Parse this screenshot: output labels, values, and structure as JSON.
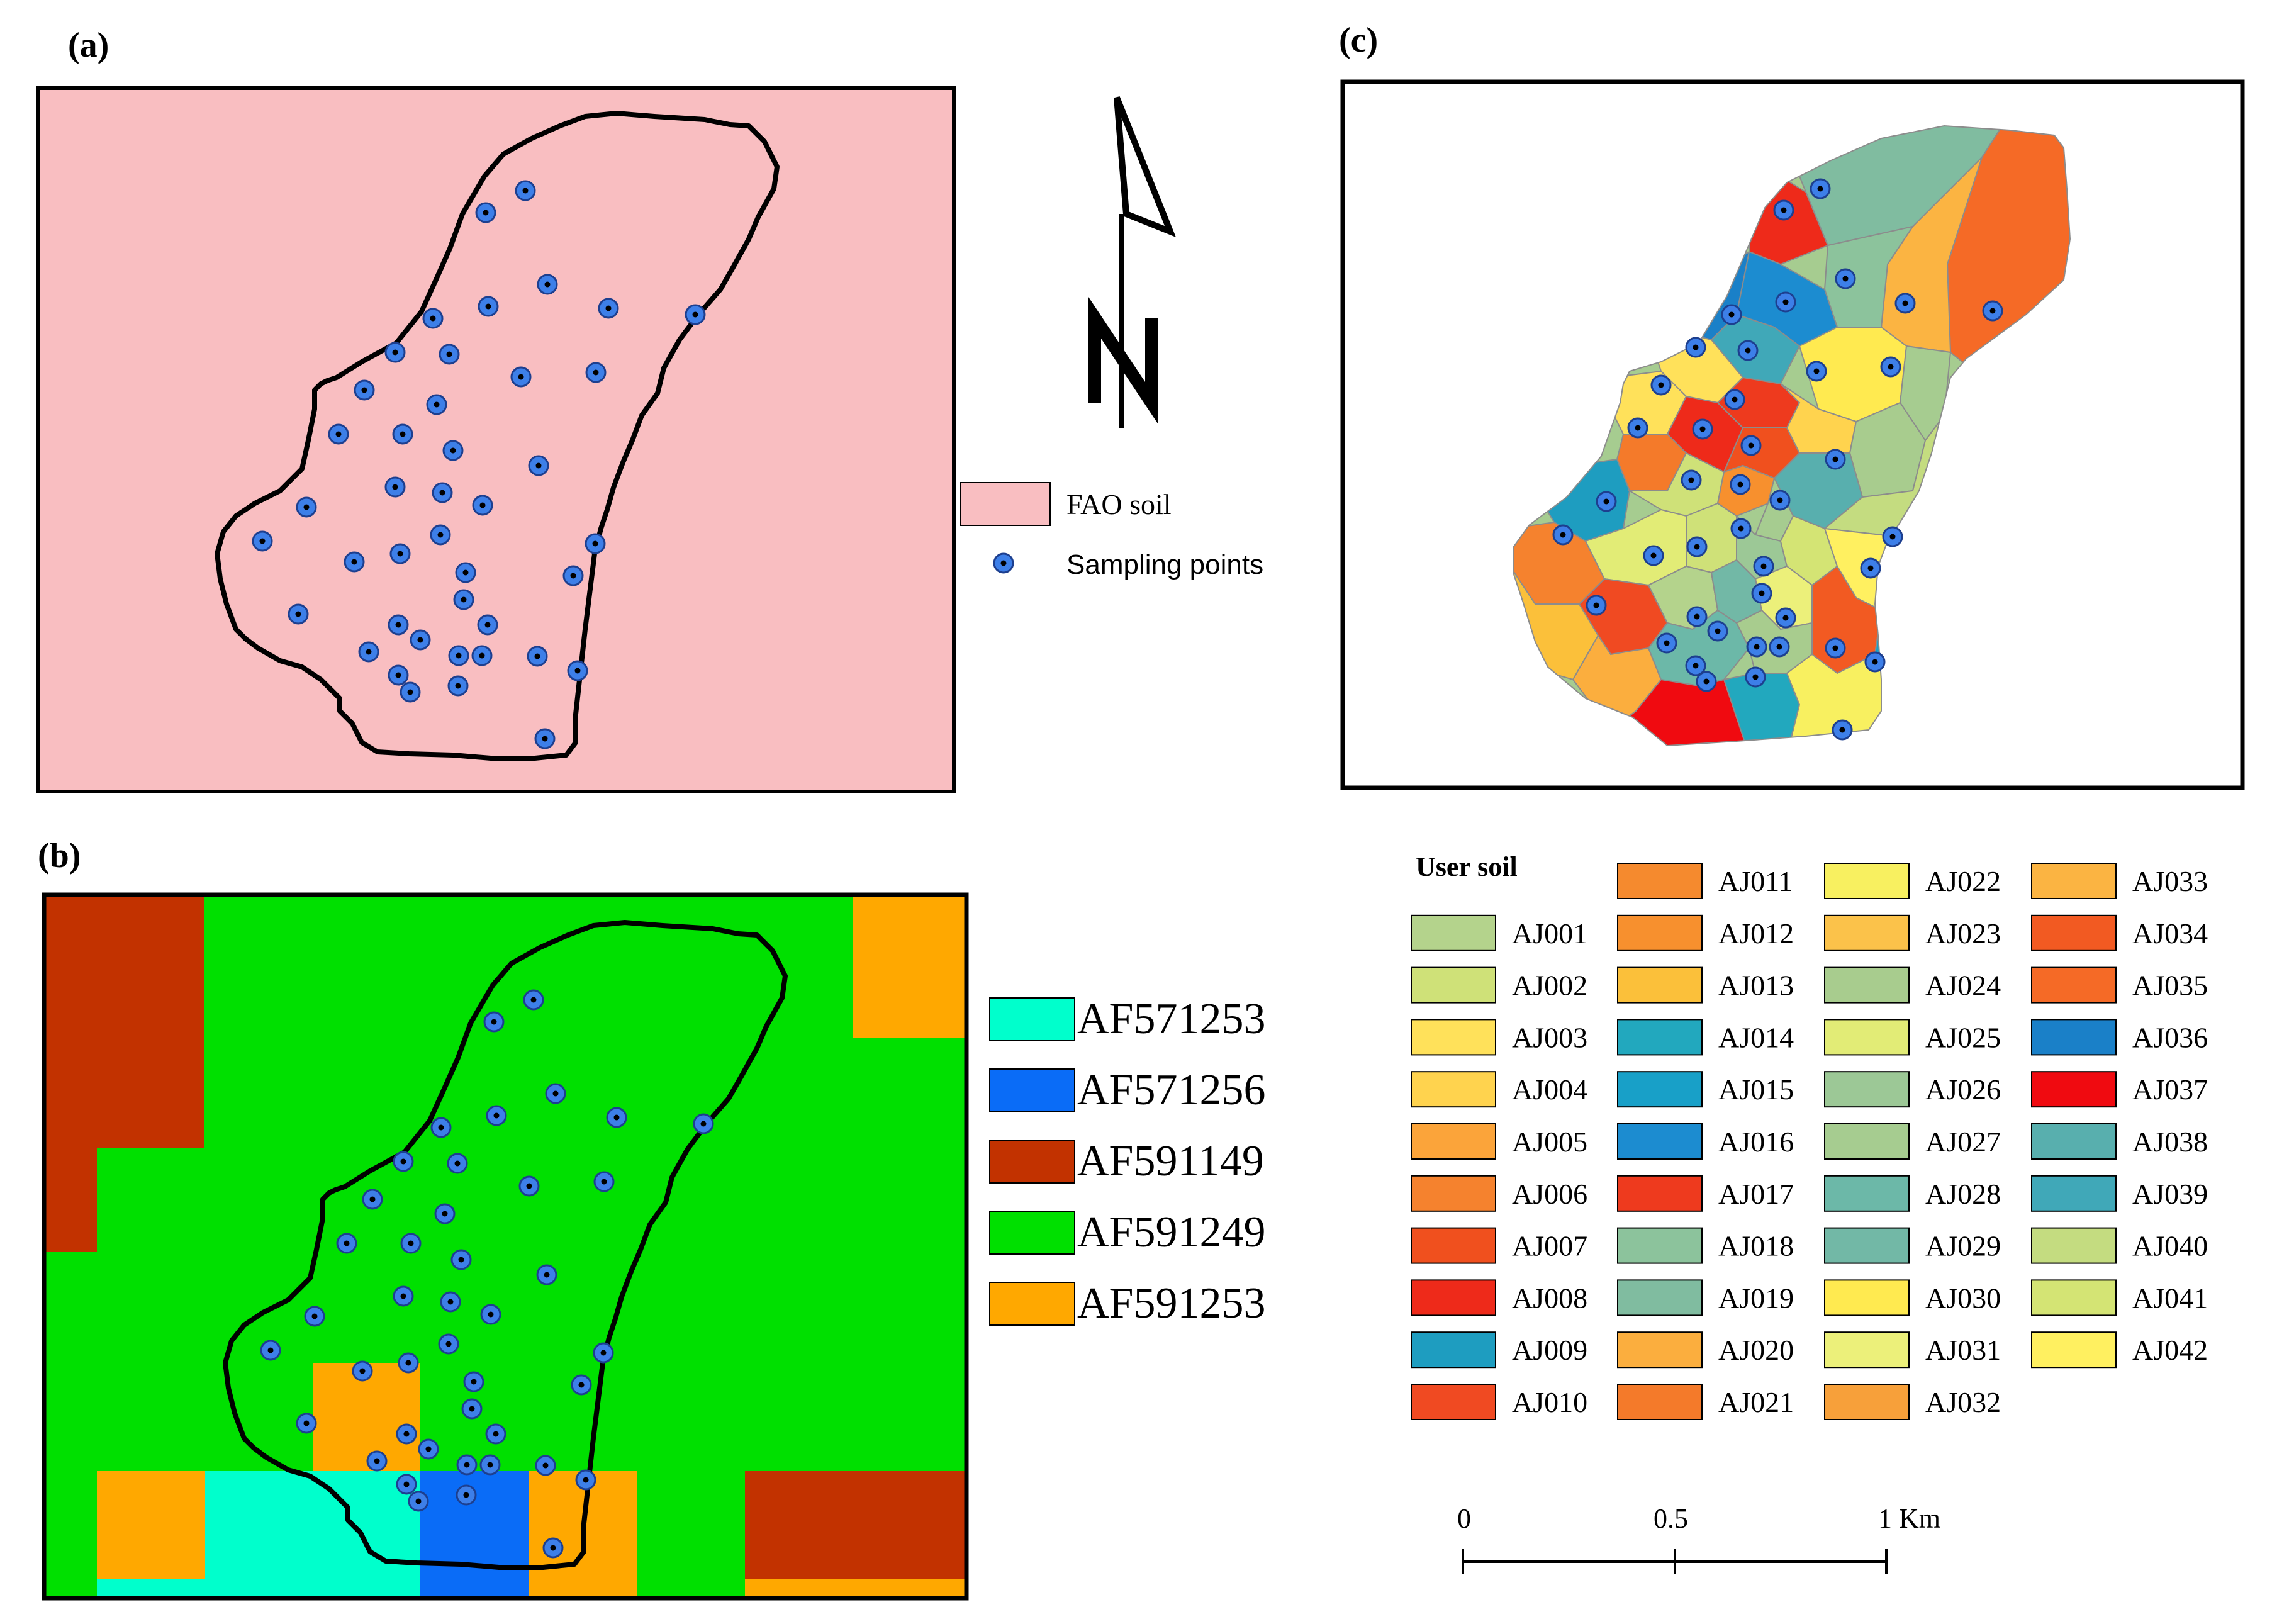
{
  "panels": {
    "a": {
      "label": "(a)"
    },
    "b": {
      "label": "(b)"
    },
    "c": {
      "label": "(c)"
    }
  },
  "legend_a": {
    "items": [
      {
        "label": "FAO soil",
        "color": "#F9BEC1"
      },
      {
        "label": "Sampling points",
        "color": "#3D7FE8"
      }
    ]
  },
  "legend_b": {
    "items": [
      {
        "label": "AF571253",
        "color": "#00FFCC"
      },
      {
        "label": "AF571256",
        "color": "#0A6CF7"
      },
      {
        "label": "AF591149",
        "color": "#C23200"
      },
      {
        "label": "AF591249",
        "color": "#00E000"
      },
      {
        "label": "AF591253",
        "color": "#FFA800"
      }
    ]
  },
  "legend_c": {
    "title": "User soil",
    "items": [
      {
        "label": "AJ001",
        "color": "#B4D38C"
      },
      {
        "label": "AJ002",
        "color": "#CFE178"
      },
      {
        "label": "AJ003",
        "color": "#FFE15A"
      },
      {
        "label": "AJ004",
        "color": "#FFD34E"
      },
      {
        "label": "AJ005",
        "color": "#FBA43A"
      },
      {
        "label": "AJ006",
        "color": "#F5822E"
      },
      {
        "label": "AJ007",
        "color": "#F0501E"
      },
      {
        "label": "AJ008",
        "color": "#EE2A1A"
      },
      {
        "label": "AJ009",
        "color": "#1E9DC0"
      },
      {
        "label": "AJ010",
        "color": "#F04A22"
      },
      {
        "label": "AJ011",
        "color": "#F58A2E"
      },
      {
        "label": "AJ012",
        "color": "#F7902E"
      },
      {
        "label": "AJ013",
        "color": "#FBC03A"
      },
      {
        "label": "AJ014",
        "color": "#22A8BE"
      },
      {
        "label": "AJ015",
        "color": "#18A0C8"
      },
      {
        "label": "AJ016",
        "color": "#1C8CD0"
      },
      {
        "label": "AJ017",
        "color": "#EE3A1E"
      },
      {
        "label": "AJ018",
        "color": "#8CC39C"
      },
      {
        "label": "AJ019",
        "color": "#80BCA0"
      },
      {
        "label": "AJ020",
        "color": "#FBAE3E"
      },
      {
        "label": "AJ021",
        "color": "#F47A2A"
      },
      {
        "label": "AJ022",
        "color": "#F8F060"
      },
      {
        "label": "AJ023",
        "color": "#FBC24A"
      },
      {
        "label": "AJ024",
        "color": "#A8CC8E"
      },
      {
        "label": "AJ025",
        "color": "#E2EC76"
      },
      {
        "label": "AJ026",
        "color": "#9CC896"
      },
      {
        "label": "AJ027",
        "color": "#A6CC90"
      },
      {
        "label": "AJ028",
        "color": "#6CB8A8"
      },
      {
        "label": "AJ029",
        "color": "#72B8A6"
      },
      {
        "label": "AJ030",
        "color": "#FFEA50"
      },
      {
        "label": "AJ031",
        "color": "#ECF07A"
      },
      {
        "label": "AJ032",
        "color": "#F7A03A"
      },
      {
        "label": "AJ033",
        "color": "#FBB442"
      },
      {
        "label": "AJ034",
        "color": "#F25A22"
      },
      {
        "label": "AJ035",
        "color": "#F56A26"
      },
      {
        "label": "AJ036",
        "color": "#1A80C8"
      },
      {
        "label": "AJ037",
        "color": "#F00A10"
      },
      {
        "label": "AJ038",
        "color": "#58AFAE"
      },
      {
        "label": "AJ039",
        "color": "#40A8B8"
      },
      {
        "label": "AJ040",
        "color": "#C4DC80"
      },
      {
        "label": "AJ041",
        "color": "#D4E474"
      },
      {
        "label": "AJ042",
        "color": "#FFF060"
      }
    ]
  },
  "scale_bar": {
    "labels": [
      "0",
      "0.5",
      "1 Km"
    ]
  },
  "north_arrow": {
    "label": "N",
    "icon": "north-arrow-icon"
  }
}
